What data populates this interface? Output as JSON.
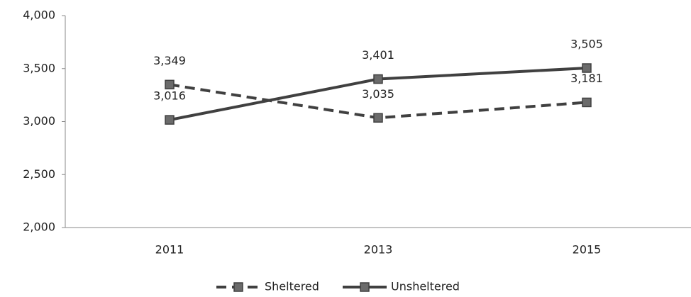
{
  "chart_data": {
    "type": "line",
    "categories": [
      "2011",
      "2013",
      "2015"
    ],
    "series": [
      {
        "name": "Sheltered",
        "color": "#404040",
        "dash": true,
        "values": [
          3349,
          3035,
          3181
        ],
        "value_labels": [
          "3,349",
          "3,035",
          "3,181"
        ]
      },
      {
        "name": "Unsheltered",
        "color": "#404040",
        "dash": false,
        "values": [
          3016,
          3401,
          3505
        ],
        "value_labels": [
          "3,016",
          "3,401",
          "3,505"
        ]
      }
    ],
    "ylim": [
      2000,
      4000
    ],
    "yticks": [
      {
        "value": 2000,
        "label": "2,000"
      },
      {
        "value": 2500,
        "label": "2,500"
      },
      {
        "value": 3000,
        "label": "3,000"
      },
      {
        "value": 3500,
        "label": "3,500"
      },
      {
        "value": 4000,
        "label": "4,000"
      }
    ],
    "grid": false
  }
}
